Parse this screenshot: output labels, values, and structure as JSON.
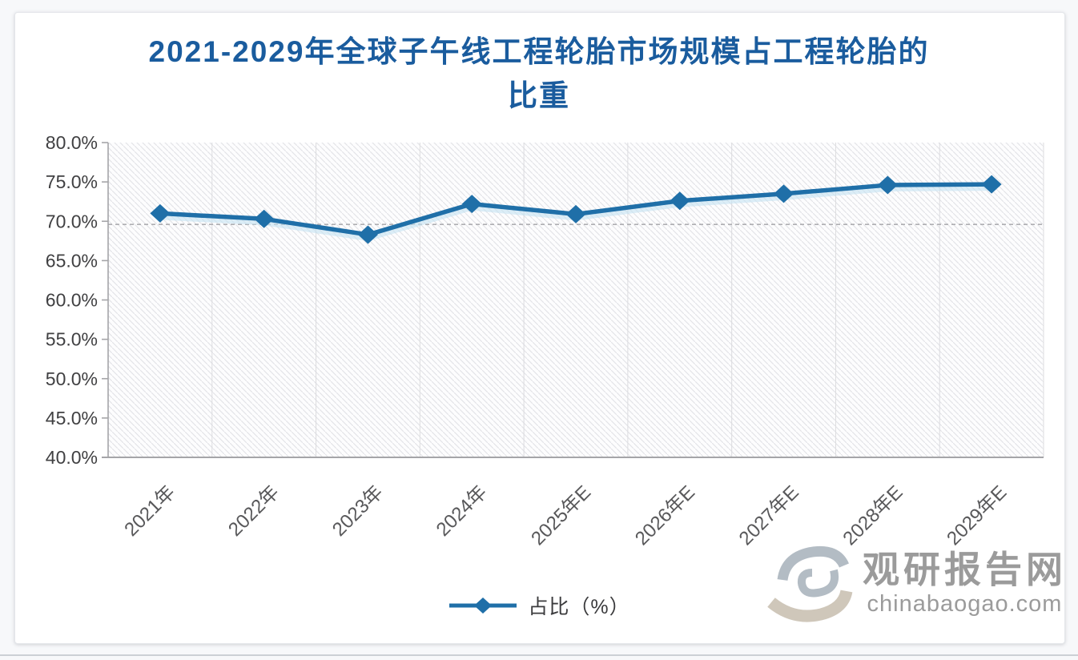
{
  "title": {
    "line1": "2021-2029年全球子午线工程轮胎市场规模占工程轮胎的",
    "line2": "比重"
  },
  "chart_data": {
    "type": "line",
    "title": "2021-2029年全球子午线工程轮胎市场规模占工程轮胎的比重",
    "categories": [
      "2021年",
      "2022年",
      "2023年",
      "2024年",
      "2025年E",
      "2026年E",
      "2027年E",
      "2028年E",
      "2029年E"
    ],
    "series": [
      {
        "name": "占比（%）",
        "values": [
          71.0,
          70.3,
          68.3,
          72.2,
          70.9,
          72.6,
          73.5,
          74.6,
          74.7
        ]
      }
    ],
    "ylim": [
      40,
      80
    ],
    "ytick_values": [
      40,
      45,
      50,
      55,
      60,
      65,
      70,
      75,
      80
    ],
    "ytick_labels": [
      "40.0%",
      "45.0%",
      "50.0%",
      "55.0%",
      "60.0%",
      "65.0%",
      "70.0%",
      "75.0%",
      "80.0%"
    ],
    "reference_line_value": 69.6,
    "grid": {
      "vertical_gridlines": true,
      "horizontal_dashed_reference": true,
      "hatched_background": true
    },
    "legend_position": "bottom",
    "marker": "diamond",
    "xlabel": "",
    "ylabel": ""
  },
  "legend": {
    "label": "占比（%）"
  },
  "watermark": {
    "name": "观研报告网",
    "domain": "chinabaogao.com"
  },
  "colors": {
    "title": "#1a5c9e",
    "line": "#1f6fa8",
    "line_glow": "#c5e2f2",
    "axis": "#a5a5a8",
    "ytick_text": "#404042",
    "xtick_text": "#58585a",
    "gridline": "#dcdcdf",
    "hatch": "#e3e4e8",
    "reference_line": "#aeaeb2",
    "watermark_text": "#9b9b9b",
    "logo_grey": "#b3bcc4",
    "logo_tan": "#cfc7ba"
  }
}
